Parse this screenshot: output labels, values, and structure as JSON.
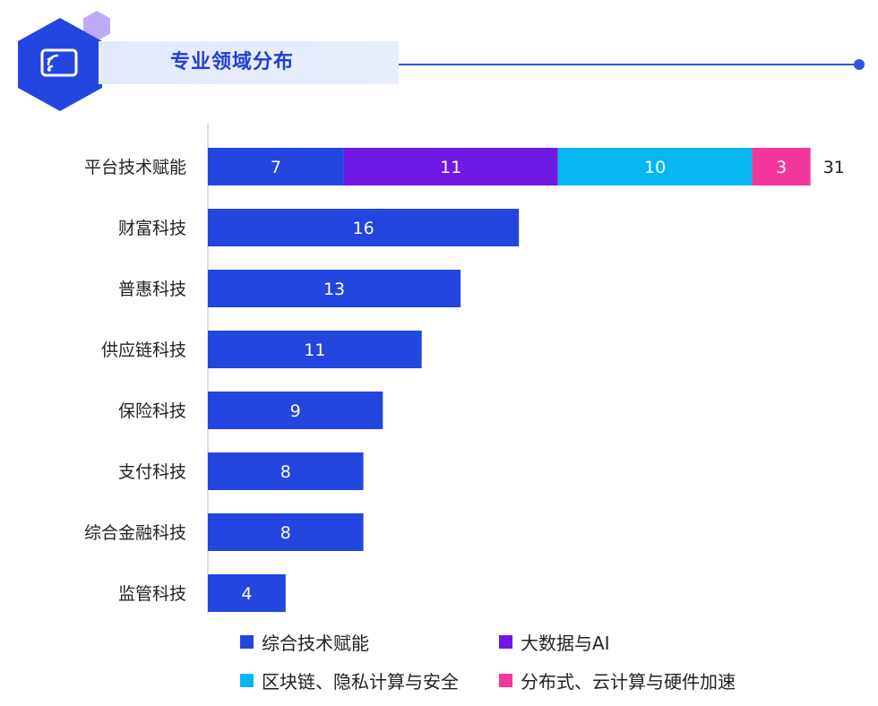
{
  "header": {
    "title": "专业领域分布",
    "icon": "cast-screen-icon"
  },
  "colors": {
    "primary": "#2346e0",
    "purple": "#7018e6",
    "cyan": "#06b6f2",
    "pink": "#f2369a",
    "title_blue": "#1f3fd6"
  },
  "chart_data": {
    "type": "bar",
    "orientation": "horizontal",
    "stacked": true,
    "categories": [
      "平台技术赋能",
      "财富科技",
      "普惠科技",
      "供应链科技",
      "保险科技",
      "支付科技",
      "综合金融科技",
      "监管科技"
    ],
    "series": [
      {
        "name": "综合技术赋能",
        "color": "#2346e0",
        "values": [
          7,
          16,
          13,
          11,
          9,
          8,
          8,
          4
        ]
      },
      {
        "name": "大数据与AI",
        "color": "#7018e6",
        "values": [
          11,
          0,
          0,
          0,
          0,
          0,
          0,
          0
        ]
      },
      {
        "name": "区块链、隐私计算与安全",
        "color": "#06b6f2",
        "values": [
          10,
          0,
          0,
          0,
          0,
          0,
          0,
          0
        ]
      },
      {
        "name": "分布式、云计算与硬件加速",
        "color": "#f2369a",
        "values": [
          3,
          0,
          0,
          0,
          0,
          0,
          0,
          0
        ]
      }
    ],
    "totals": [
      {
        "category": "平台技术赋能",
        "value": 31
      }
    ],
    "xlim": [
      0,
      31
    ],
    "grid": false,
    "legend_position": "bottom",
    "xlabel": "",
    "ylabel": ""
  },
  "legend": [
    {
      "label": "综合技术赋能",
      "color": "#2346e0"
    },
    {
      "label": "大数据与AI",
      "color": "#7018e6"
    },
    {
      "label": "区块链、隐私计算与安全",
      "color": "#06b6f2"
    },
    {
      "label": "分布式、云计算与硬件加速",
      "color": "#f2369a"
    }
  ]
}
